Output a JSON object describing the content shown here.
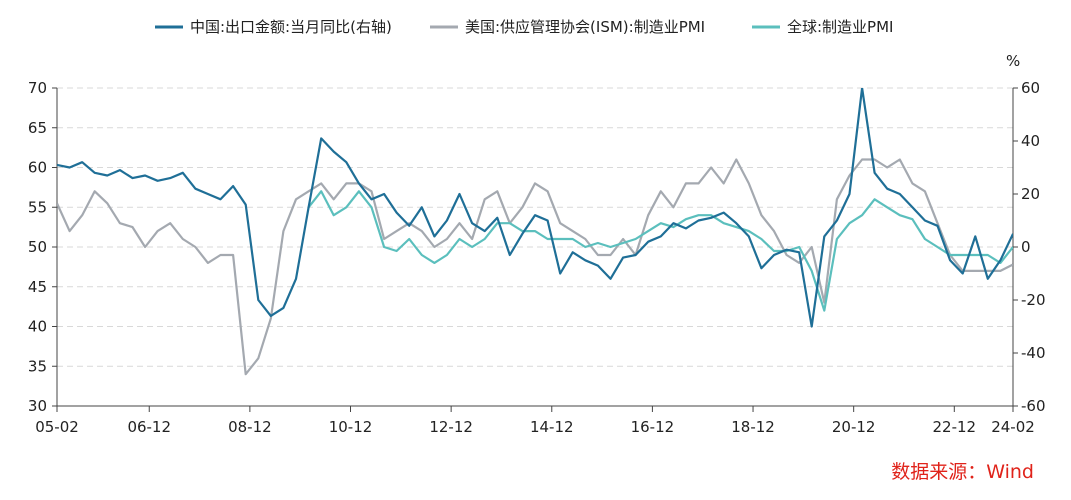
{
  "chart_data": {
    "type": "line",
    "x": [
      "2005-02",
      "2005-05",
      "2005-08",
      "2005-11",
      "2006-02",
      "2006-05",
      "2006-08",
      "2006-11",
      "2007-02",
      "2007-05",
      "2007-08",
      "2007-11",
      "2008-02",
      "2008-05",
      "2008-08",
      "2008-11",
      "2009-02",
      "2009-05",
      "2009-08",
      "2009-11",
      "2010-02",
      "2010-05",
      "2010-08",
      "2010-11",
      "2011-02",
      "2011-05",
      "2011-08",
      "2011-11",
      "2012-02",
      "2012-05",
      "2012-08",
      "2012-11",
      "2013-02",
      "2013-05",
      "2013-08",
      "2013-11",
      "2014-02",
      "2014-05",
      "2014-08",
      "2014-11",
      "2015-02",
      "2015-05",
      "2015-08",
      "2015-11",
      "2016-02",
      "2016-05",
      "2016-08",
      "2016-11",
      "2017-02",
      "2017-05",
      "2017-08",
      "2017-11",
      "2018-02",
      "2018-05",
      "2018-08",
      "2018-11",
      "2019-02",
      "2019-05",
      "2019-08",
      "2019-11",
      "2020-02",
      "2020-05",
      "2020-08",
      "2020-11",
      "2021-02",
      "2021-05",
      "2021-08",
      "2021-11",
      "2022-02",
      "2022-05",
      "2022-08",
      "2022-11",
      "2023-02",
      "2023-05",
      "2023-08",
      "2023-11",
      "2024-02"
    ],
    "x_tick_labels": [
      "05-02",
      "06-12",
      "08-12",
      "10-12",
      "12-12",
      "14-12",
      "16-12",
      "18-12",
      "20-12",
      "22-12",
      "24-02"
    ],
    "x_tick_dates": [
      "2005-02",
      "2006-12",
      "2008-12",
      "2010-12",
      "2012-12",
      "2014-12",
      "2016-12",
      "2018-12",
      "2020-12",
      "2022-12",
      "2024-02"
    ],
    "series": [
      {
        "name": "中国:出口金额:当月同比(右轴)",
        "axis": "right",
        "color": "#1f6f97",
        "values": [
          31,
          30,
          32,
          28,
          27,
          29,
          26,
          27,
          25,
          26,
          28,
          22,
          20,
          18,
          23,
          16,
          -20,
          -26,
          -23,
          -12,
          15,
          41,
          36,
          32,
          24,
          18,
          20,
          13,
          8,
          15,
          4,
          10,
          20,
          9,
          6,
          11,
          -3,
          5,
          12,
          10,
          -10,
          -2,
          -5,
          -7,
          -12,
          -4,
          -3,
          2,
          4,
          9,
          7,
          10,
          11,
          13,
          9,
          4,
          -8,
          -3,
          -1,
          -2,
          -30,
          4,
          10,
          20,
          60,
          28,
          22,
          20,
          15,
          10,
          8,
          -5,
          -10,
          4,
          -12,
          -5,
          5
        ]
      },
      {
        "name": "美国:供应管理协会(ISM):制造业PMI",
        "axis": "left",
        "color": "#a4a9b0",
        "values": [
          55.5,
          52,
          54,
          57,
          55.5,
          53,
          52.5,
          50,
          52,
          53,
          51,
          50,
          48,
          49,
          49,
          34,
          36,
          41,
          52,
          56,
          57,
          58,
          56,
          58,
          58,
          57,
          51,
          52,
          53,
          52,
          50,
          51,
          53,
          51,
          56,
          57,
          53,
          55,
          58,
          57,
          53,
          52,
          51,
          49,
          49,
          51,
          49,
          54,
          57,
          55,
          58,
          58,
          60,
          58,
          61,
          58,
          54,
          52,
          49,
          48,
          50,
          43,
          56,
          59,
          61,
          61,
          60,
          61,
          58,
          57,
          53,
          49,
          47,
          47,
          47,
          47,
          47.8
        ]
      },
      {
        "name": "全球:制造业PMI",
        "axis": "left",
        "color": "#5bbfbd",
        "values": [
          null,
          null,
          null,
          null,
          null,
          null,
          null,
          null,
          null,
          null,
          null,
          null,
          null,
          null,
          null,
          null,
          null,
          null,
          null,
          null,
          55,
          57,
          54,
          55,
          57,
          55,
          50,
          49.5,
          51,
          49,
          48,
          49,
          51,
          50,
          51,
          53,
          53,
          52,
          52,
          51,
          51,
          51,
          50,
          50.5,
          50,
          50.5,
          51,
          52,
          53,
          52.5,
          53.5,
          54,
          54,
          53,
          52.5,
          52,
          51,
          49.5,
          49.5,
          50,
          47,
          42,
          51,
          53,
          54,
          56,
          55,
          54,
          53.5,
          51,
          50,
          49,
          49,
          49,
          49,
          48,
          50
        ]
      }
    ],
    "left_axis": {
      "min": 30,
      "max": 70,
      "ticks": [
        30,
        35,
        40,
        45,
        50,
        55,
        60,
        65,
        70
      ]
    },
    "right_axis": {
      "min": -60,
      "max": 60,
      "ticks": [
        -60,
        -40,
        -20,
        0,
        20,
        40,
        60
      ],
      "unit": "%"
    },
    "grid": true,
    "legend_position": "top",
    "source_text": "数据来源：Wind"
  }
}
